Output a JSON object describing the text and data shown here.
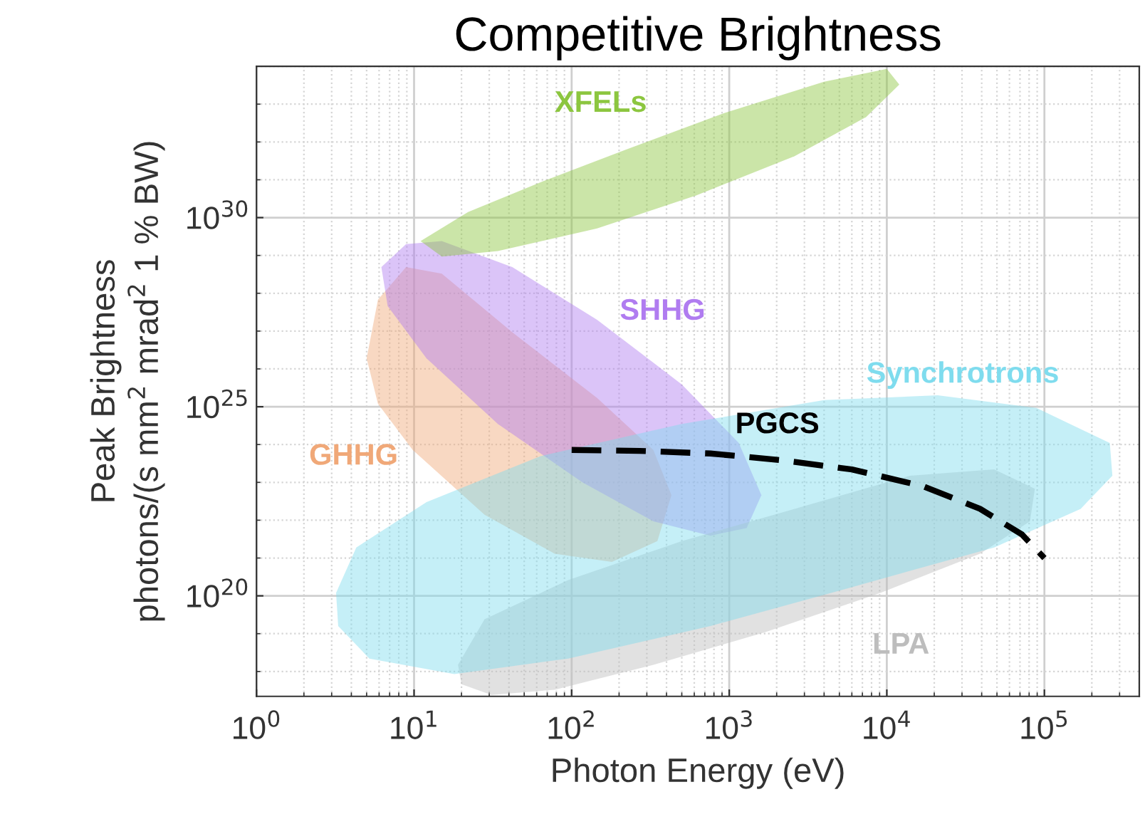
{
  "chart_data": {
    "type": "area",
    "title": "Competitive Brightness",
    "xlabel": "Photon Energy (eV)",
    "ylabel": "Peak Brightness\nphotons/(s mm$^{2}$ mrad$^{2}$ 1 % BW)",
    "log": "xy",
    "grid": true,
    "xlim": [
      1,
      400000
    ],
    "ylim": [
      2.2e+17,
      1e+34
    ],
    "xticks": [
      {
        "value": 1,
        "label": "10$^{0}$"
      },
      {
        "value": 10,
        "label": "10$^{1}$"
      },
      {
        "value": 100,
        "label": "10$^{2}$"
      },
      {
        "value": 1000,
        "label": "10$^{3}$"
      },
      {
        "value": 10000,
        "label": "10$^{4}$"
      },
      {
        "value": 100000,
        "label": "10$^{5}$"
      }
    ],
    "yticks": [
      {
        "value": 1e+20,
        "label": "10$^{20}$"
      },
      {
        "value": 1e+25,
        "label": "10$^{25}$"
      },
      {
        "value": 1e+30,
        "label": "10$^{30}$"
      }
    ],
    "series": [
      {
        "name": "GHHG",
        "color": "#f0a878",
        "x": [
          5.0,
          5.9,
          8.9,
          15,
          42,
          145,
          330,
          430,
          350,
          180,
          78,
          28,
          9.8,
          5.9
        ],
        "values": [
          1.9e+26,
          6.8e+27,
          4.9e+28,
          3.3e+28,
          9.3e+26,
          1.7e+25,
          7.2e+23,
          4.6e+22,
          2.8e+21,
          7.9e+20,
          1.3e+21,
          1.4e+22,
          7.2e+23,
          1.2e+25
        ]
      },
      {
        "name": "SHHG",
        "color": "#b07cf0",
        "x": [
          6.2,
          8.9,
          15,
          42,
          145,
          500,
          1150,
          1600,
          1290,
          760,
          330,
          117,
          34,
          12,
          6.8
        ],
        "values": [
          4.9e+28,
          2e+29,
          2.4e+29,
          4.9e+28,
          2e+27,
          3.9e+25,
          1.1e+24,
          4.6e+22,
          6.2e+21,
          3.9e+21,
          9.3e+21,
          1e+23,
          3.5e+24,
          1.9e+26,
          4.6e+27
        ]
      },
      {
        "name": "XFELs",
        "color": "#8cc63f",
        "x": [
          11,
          22,
          63,
          220,
          930,
          4000,
          10000,
          12000,
          7400,
          2600,
          620,
          145,
          34,
          15
        ],
        "values": [
          2.4e+29,
          1.4e+30,
          8.5e+30,
          6.2e+31,
          5.8e+32,
          3.9e+33,
          8.5e+33,
          3.3e+33,
          4.6e+32,
          4.2e+31,
          3.9e+30,
          5.2e+29,
          1.3e+29,
          9.3e+28
        ]
      },
      {
        "name": "LPA",
        "color": "#bdbdbd",
        "x": [
          19,
          28,
          95,
          500,
          2600,
          14000,
          48000,
          87000,
          81000,
          39000,
          9100,
          1700,
          330,
          78,
          31,
          20
        ],
        "values": [
          1.5e+18,
          2.4e+19,
          2.6e+20,
          2.8e+21,
          2e+22,
          1.5e+23,
          2.2e+23,
          6.8e+22,
          9.3e+21,
          1.3e+21,
          1.2e+20,
          1.1e+19,
          1.5e+18,
          3.3e+17,
          2.4e+17,
          4.6e+17
        ]
      },
      {
        "name": "Synchrotrons",
        "color": "#7fdcee",
        "x": [
          3.2,
          4.3,
          12,
          63,
          500,
          4000,
          21000,
          89000,
          260000,
          270000,
          170000,
          48000,
          6000,
          760,
          95,
          18,
          5.2,
          3.3
        ],
        "values": [
          1.2e+20,
          1.9e+21,
          3e+22,
          4.9e+23,
          3.5e+24,
          1.5e+25,
          2e+25,
          9.3e+24,
          1.1e+24,
          1.5e+23,
          2e+22,
          1.9e+21,
          1.7e+20,
          1.6e+19,
          2.2e+18,
          8.5e+17,
          2.2e+18,
          1.6e+19
        ]
      },
      {
        "name": "PGCS",
        "type": "line",
        "color": "#000000",
        "line_style": "dashed",
        "x": [
          100,
          270,
          760,
          2100,
          6000,
          17000,
          39000,
          72000,
          100000
        ],
        "values": [
          7.2e+23,
          6.8e+23,
          5.8e+23,
          3.9e+23,
          2.2e+23,
          7.9e+22,
          2e+22,
          4.2e+21,
          1e+21
        ]
      }
    ]
  }
}
